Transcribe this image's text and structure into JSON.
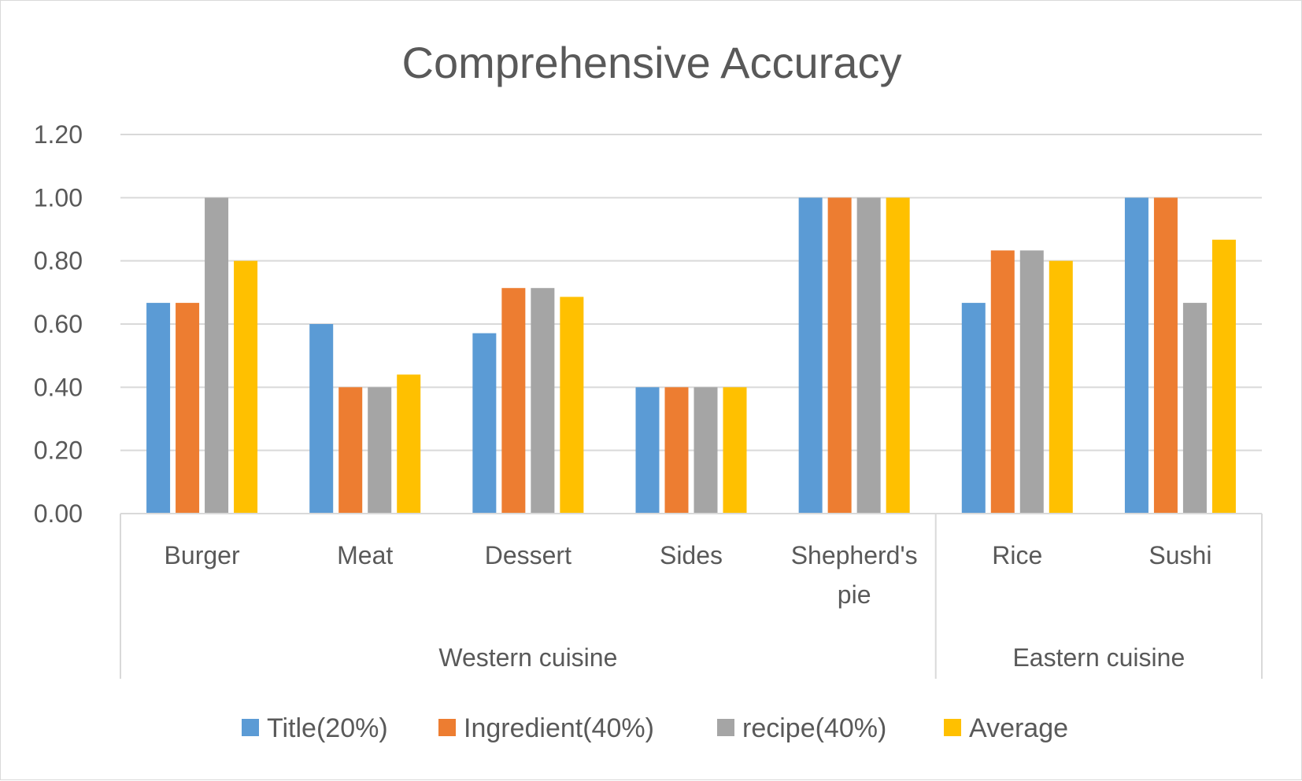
{
  "chart_data": {
    "type": "bar",
    "title": "Comprehensive Accuracy",
    "xlabel": "",
    "ylabel": "",
    "ylim": [
      0,
      1.2
    ],
    "yticks": [
      "0.00",
      "0.20",
      "0.40",
      "0.60",
      "0.80",
      "1.00",
      "1.20"
    ],
    "grid": true,
    "legend_position": "bottom",
    "categories": [
      "Burger",
      "Meat",
      "Dessert",
      "Sides",
      "Shepherd's pie",
      "Rice",
      "Sushi"
    ],
    "category_lines": [
      [
        "Burger"
      ],
      [
        "Meat"
      ],
      [
        "Dessert"
      ],
      [
        "Sides"
      ],
      [
        "Shepherd's",
        "pie"
      ],
      [
        "Rice"
      ],
      [
        "Sushi"
      ]
    ],
    "groups": [
      {
        "label": "Western cuisine",
        "categories": [
          "Burger",
          "Meat",
          "Dessert",
          "Sides",
          "Shepherd's pie"
        ]
      },
      {
        "label": "Eastern cuisine",
        "categories": [
          "Rice",
          "Sushi"
        ]
      }
    ],
    "series": [
      {
        "name": "Title(20%)",
        "color": "#5b9bd5",
        "values": [
          0.667,
          0.6,
          0.571,
          0.4,
          1.0,
          0.667,
          1.0
        ]
      },
      {
        "name": "Ingredient(40%)",
        "color": "#ed7d31",
        "values": [
          0.667,
          0.4,
          0.714,
          0.4,
          1.0,
          0.833,
          1.0
        ]
      },
      {
        "name": "recipe(40%)",
        "color": "#a5a5a5",
        "values": [
          1.0,
          0.4,
          0.714,
          0.4,
          1.0,
          0.833,
          0.667
        ]
      },
      {
        "name": "Average",
        "color": "#ffc000",
        "values": [
          0.8,
          0.44,
          0.686,
          0.4,
          1.0,
          0.8,
          0.867
        ]
      }
    ]
  }
}
